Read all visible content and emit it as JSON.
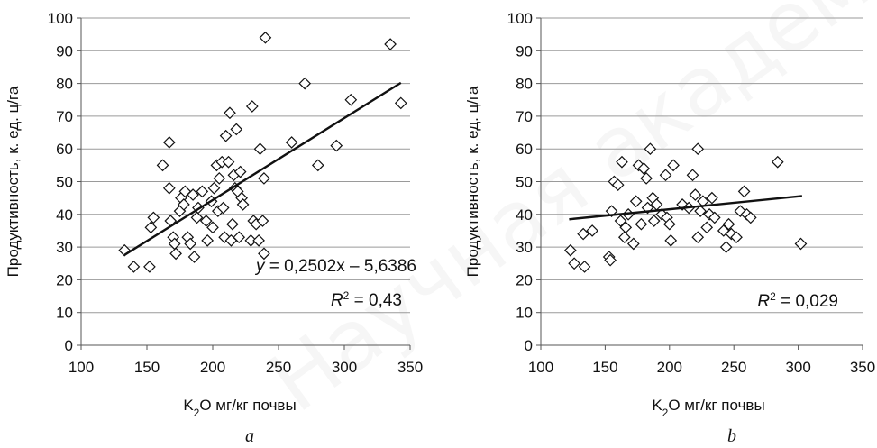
{
  "watermark": "Научная академия наук",
  "chart_data": [
    {
      "type": "scatter",
      "panel_label": "a",
      "xlabel_main": "K",
      "xlabel_sub": "2",
      "xlabel_rest": "O   мг/кг почвы",
      "ylabel": "Продуктивность, к. ед. ц/га",
      "xlim": [
        100,
        350
      ],
      "ylim": [
        0,
        100
      ],
      "x_ticks": [
        "100",
        "150",
        "200",
        "250",
        "300",
        "350"
      ],
      "y_ticks": [
        "0",
        "10",
        "20",
        "30",
        "40",
        "50",
        "60",
        "70",
        "80",
        "90",
        "100"
      ],
      "trendline": {
        "x": [
          133,
          343
        ],
        "y": [
          27.6,
          80.2
        ]
      },
      "equation": {
        "prefix": "y",
        "body": " = 0,2502x – 5,6386"
      },
      "r2": {
        "label": "R",
        "sup": "2",
        "value": " = 0,43"
      },
      "points": [
        {
          "x": 133,
          "y": 29
        },
        {
          "x": 140,
          "y": 24
        },
        {
          "x": 152,
          "y": 24
        },
        {
          "x": 153,
          "y": 36
        },
        {
          "x": 155,
          "y": 39
        },
        {
          "x": 162,
          "y": 55
        },
        {
          "x": 167,
          "y": 62
        },
        {
          "x": 167,
          "y": 48
        },
        {
          "x": 168,
          "y": 38
        },
        {
          "x": 170,
          "y": 33
        },
        {
          "x": 171,
          "y": 31
        },
        {
          "x": 172,
          "y": 28
        },
        {
          "x": 175,
          "y": 41
        },
        {
          "x": 176,
          "y": 45
        },
        {
          "x": 178,
          "y": 43
        },
        {
          "x": 179,
          "y": 47
        },
        {
          "x": 181,
          "y": 33
        },
        {
          "x": 183,
          "y": 31
        },
        {
          "x": 185,
          "y": 46
        },
        {
          "x": 186,
          "y": 27
        },
        {
          "x": 188,
          "y": 39
        },
        {
          "x": 189,
          "y": 42
        },
        {
          "x": 192,
          "y": 47
        },
        {
          "x": 195,
          "y": 38
        },
        {
          "x": 196,
          "y": 32
        },
        {
          "x": 199,
          "y": 44
        },
        {
          "x": 200,
          "y": 36
        },
        {
          "x": 201,
          "y": 48
        },
        {
          "x": 203,
          "y": 55
        },
        {
          "x": 204,
          "y": 41
        },
        {
          "x": 205,
          "y": 51
        },
        {
          "x": 207,
          "y": 56
        },
        {
          "x": 208,
          "y": 42
        },
        {
          "x": 209,
          "y": 33
        },
        {
          "x": 210,
          "y": 64
        },
        {
          "x": 212,
          "y": 56
        },
        {
          "x": 213,
          "y": 71
        },
        {
          "x": 214,
          "y": 32
        },
        {
          "x": 215,
          "y": 37
        },
        {
          "x": 216,
          "y": 52
        },
        {
          "x": 217,
          "y": 48
        },
        {
          "x": 218,
          "y": 66
        },
        {
          "x": 219,
          "y": 47
        },
        {
          "x": 220,
          "y": 33
        },
        {
          "x": 221,
          "y": 53
        },
        {
          "x": 222,
          "y": 45
        },
        {
          "x": 223,
          "y": 43
        },
        {
          "x": 229,
          "y": 32
        },
        {
          "x": 230,
          "y": 73
        },
        {
          "x": 231,
          "y": 38
        },
        {
          "x": 233,
          "y": 37
        },
        {
          "x": 235,
          "y": 32
        },
        {
          "x": 236,
          "y": 60
        },
        {
          "x": 238,
          "y": 38
        },
        {
          "x": 239,
          "y": 28
        },
        {
          "x": 239,
          "y": 51
        },
        {
          "x": 240,
          "y": 94
        },
        {
          "x": 260,
          "y": 62
        },
        {
          "x": 270,
          "y": 80
        },
        {
          "x": 280,
          "y": 55
        },
        {
          "x": 294,
          "y": 61
        },
        {
          "x": 305,
          "y": 75
        },
        {
          "x": 335,
          "y": 92
        },
        {
          "x": 343,
          "y": 74
        }
      ]
    },
    {
      "type": "scatter",
      "panel_label": "b",
      "xlabel_main": "K",
      "xlabel_sub": "2",
      "xlabel_rest": "O   мг/кг почвы",
      "ylabel": "Продуктивность, к. ед. ц/га",
      "xlim": [
        100,
        350
      ],
      "ylim": [
        0,
        100
      ],
      "x_ticks": [
        "100",
        "150",
        "200",
        "250",
        "300",
        "350"
      ],
      "y_ticks": [
        "0",
        "10",
        "20",
        "30",
        "40",
        "50",
        "60",
        "70",
        "80",
        "90",
        "100"
      ],
      "trendline": {
        "x": [
          122,
          303
        ],
        "y": [
          38.5,
          45.6
        ]
      },
      "r2": {
        "label": "R",
        "sup": "2",
        "value": " = 0,029"
      },
      "points": [
        {
          "x": 123,
          "y": 29
        },
        {
          "x": 126,
          "y": 25
        },
        {
          "x": 133,
          "y": 34
        },
        {
          "x": 134,
          "y": 24
        },
        {
          "x": 140,
          "y": 35
        },
        {
          "x": 153,
          "y": 27
        },
        {
          "x": 154,
          "y": 26
        },
        {
          "x": 155,
          "y": 41
        },
        {
          "x": 157,
          "y": 50
        },
        {
          "x": 160,
          "y": 49
        },
        {
          "x": 162,
          "y": 38
        },
        {
          "x": 163,
          "y": 56
        },
        {
          "x": 165,
          "y": 33
        },
        {
          "x": 166,
          "y": 36
        },
        {
          "x": 168,
          "y": 40
        },
        {
          "x": 172,
          "y": 31
        },
        {
          "x": 174,
          "y": 44
        },
        {
          "x": 176,
          "y": 55
        },
        {
          "x": 178,
          "y": 37
        },
        {
          "x": 180,
          "y": 54
        },
        {
          "x": 182,
          "y": 51
        },
        {
          "x": 183,
          "y": 42
        },
        {
          "x": 185,
          "y": 60
        },
        {
          "x": 187,
          "y": 45
        },
        {
          "x": 188,
          "y": 38
        },
        {
          "x": 190,
          "y": 43
        },
        {
          "x": 194,
          "y": 40
        },
        {
          "x": 197,
          "y": 52
        },
        {
          "x": 198,
          "y": 39
        },
        {
          "x": 200,
          "y": 37
        },
        {
          "x": 201,
          "y": 32
        },
        {
          "x": 203,
          "y": 55
        },
        {
          "x": 210,
          "y": 43
        },
        {
          "x": 215,
          "y": 42
        },
        {
          "x": 218,
          "y": 52
        },
        {
          "x": 220,
          "y": 46
        },
        {
          "x": 222,
          "y": 33
        },
        {
          "x": 222,
          "y": 60
        },
        {
          "x": 224,
          "y": 41
        },
        {
          "x": 226,
          "y": 44
        },
        {
          "x": 229,
          "y": 36
        },
        {
          "x": 231,
          "y": 40
        },
        {
          "x": 233,
          "y": 45
        },
        {
          "x": 235,
          "y": 39
        },
        {
          "x": 242,
          "y": 35
        },
        {
          "x": 244,
          "y": 30
        },
        {
          "x": 246,
          "y": 37
        },
        {
          "x": 248,
          "y": 34
        },
        {
          "x": 252,
          "y": 33
        },
        {
          "x": 255,
          "y": 41
        },
        {
          "x": 258,
          "y": 47
        },
        {
          "x": 260,
          "y": 40
        },
        {
          "x": 263,
          "y": 39
        },
        {
          "x": 284,
          "y": 56
        },
        {
          "x": 302,
          "y": 31
        }
      ]
    }
  ]
}
